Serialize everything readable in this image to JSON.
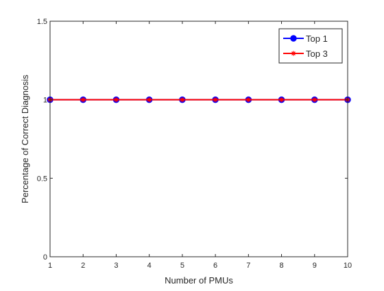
{
  "chart_data": {
    "type": "line",
    "title": "",
    "xlabel": "Number of PMUs",
    "ylabel": "Percentage of Correct Diagnosis",
    "x": [
      1,
      2,
      3,
      4,
      5,
      6,
      7,
      8,
      9,
      10
    ],
    "xlim": [
      1,
      10
    ],
    "ylim": [
      0,
      1.5
    ],
    "xticks": [
      "1",
      "2",
      "3",
      "4",
      "5",
      "6",
      "7",
      "8",
      "9",
      "10"
    ],
    "yticks": [
      "0",
      "0.5",
      "1",
      "1.5"
    ],
    "grid": false,
    "legend_position": "top-right",
    "series": [
      {
        "name": "Top 1",
        "values": [
          1,
          1,
          1,
          1,
          1,
          1,
          1,
          1,
          1,
          1
        ],
        "color": "#0000ff",
        "marker": "circle",
        "marker_face": "#0000ff"
      },
      {
        "name": "Top 3",
        "values": [
          1,
          1,
          1,
          1,
          1,
          1,
          1,
          1,
          1,
          1
        ],
        "color": "#ff0000",
        "marker": "asterisk",
        "marker_face": "none"
      }
    ]
  }
}
